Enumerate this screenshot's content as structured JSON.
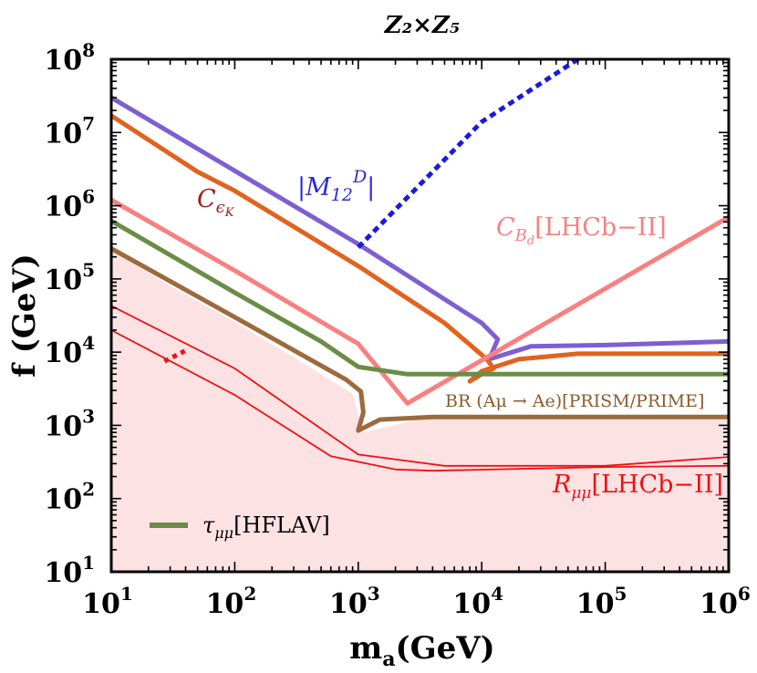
{
  "chart_data": {
    "type": "line",
    "title": "Z₂×Z₅",
    "xlabel": "m_a(GeV)",
    "ylabel": "f (GeV)",
    "xscale": "log",
    "yscale": "log",
    "xlim": [
      10,
      1000000
    ],
    "ylim": [
      10,
      100000000
    ],
    "xticks": [
      {
        "base": "10",
        "exp": "1"
      },
      {
        "base": "10",
        "exp": "2"
      },
      {
        "base": "10",
        "exp": "3"
      },
      {
        "base": "10",
        "exp": "4"
      },
      {
        "base": "10",
        "exp": "5"
      },
      {
        "base": "10",
        "exp": "6"
      }
    ],
    "yticks": [
      {
        "base": "10",
        "exp": "1"
      },
      {
        "base": "10",
        "exp": "2"
      },
      {
        "base": "10",
        "exp": "3"
      },
      {
        "base": "10",
        "exp": "4"
      },
      {
        "base": "10",
        "exp": "5"
      },
      {
        "base": "10",
        "exp": "6"
      },
      {
        "base": "10",
        "exp": "7"
      },
      {
        "base": "10",
        "exp": "8"
      }
    ],
    "legend": {
      "label": "τ_μμ[HFLAV]",
      "color": "#6b8c46",
      "position": "bottom-left"
    },
    "excluded_region": {
      "name": "excluded",
      "color": "#fde2e4",
      "x": [
        10,
        30,
        100,
        300,
        900,
        1100,
        3000,
        10000,
        100000,
        1000000
      ],
      "y": [
        250000,
        80000,
        26000,
        8500,
        2700,
        800,
        1200,
        1300,
        1300,
        1300
      ]
    },
    "series": [
      {
        "name": "M12D",
        "label": "|M₁₂ᴰ|",
        "color": "#7f5fd0",
        "dashed": false,
        "x": [
          10,
          100,
          1000,
          10000,
          13500,
          11500,
          25000,
          100000,
          1000000
        ],
        "y": [
          30000000,
          3000000,
          300000,
          25000,
          15000,
          8000,
          12000,
          12500,
          14000
        ]
      },
      {
        "name": "M12D-extension",
        "label": "",
        "color": "#1a1adf",
        "dashed": true,
        "x": [
          1000,
          10000,
          60000
        ],
        "y": [
          270000,
          14000000,
          100000000
        ]
      },
      {
        "name": "CepsK",
        "label": "CεK",
        "color": "#e1631d",
        "dashed": false,
        "x": [
          10,
          50,
          100,
          1000,
          5000,
          11000,
          12500,
          11000,
          8000,
          10000,
          20000,
          60000,
          1000000
        ],
        "y": [
          17000000,
          2900000,
          1600000,
          150000,
          25000,
          8000,
          6000,
          5500,
          4000,
          5500,
          8000,
          9500,
          9500
        ]
      },
      {
        "name": "CBd",
        "label": "C_Bd[LHCb−II]",
        "color": "#f88080",
        "dashed": false,
        "x": [
          10,
          100,
          1000,
          2500,
          1000000
        ],
        "y": [
          1200000,
          130000,
          13000,
          2000,
          700000
        ]
      },
      {
        "name": "tau_mumu",
        "label": "τ_μμ[HFLAV]",
        "color": "#6b8c46",
        "dashed": false,
        "x": [
          10,
          100,
          500,
          1000,
          2500,
          10000,
          100000,
          1000000
        ],
        "y": [
          620000,
          65000,
          14000,
          6300,
          5000,
          5000,
          5000,
          5000
        ]
      },
      {
        "name": "BR_Amu_Ae",
        "label": "BR (Aμ → Ae)[PRISM/PRIME]",
        "color": "#9c6a3c",
        "dashed": false,
        "x": [
          10,
          100,
          800,
          1050,
          1100,
          1000,
          1500,
          4000,
          100000,
          1000000
        ],
        "y": [
          260000,
          30000,
          4200,
          2900,
          1500,
          850,
          1200,
          1300,
          1300,
          1300
        ]
      },
      {
        "name": "R_mumu_upper",
        "label": "R_μμ[LHCb−II]",
        "color": "#ee1111",
        "dashed": false,
        "x": [
          10,
          100,
          500,
          1000,
          5000,
          100000,
          1000000
        ],
        "y": [
          43000,
          6000,
          900,
          400,
          280,
          280,
          370
        ]
      },
      {
        "name": "R_mumu_lower",
        "label": "",
        "color": "#ee1111",
        "dashed": false,
        "x": [
          10,
          100,
          600,
          2000,
          4000,
          100000,
          1000000
        ],
        "y": [
          20000,
          2600,
          380,
          250,
          240,
          270,
          280
        ]
      },
      {
        "name": "R_mumu_gap",
        "label": "",
        "color": "#ee1111",
        "dashed": true,
        "x": [
          27,
          40
        ],
        "y": [
          7500,
          10500
        ]
      }
    ],
    "annotations": {
      "m12d": {
        "main": "|M",
        "sub": "12",
        "sup": "D",
        "end": "|",
        "color": "#2a2ad9"
      },
      "cepsk": {
        "main": "C",
        "sub": "ϵ",
        "subsub": "K",
        "color": "#a21a1a"
      },
      "cbd": {
        "main": "C",
        "sub": "B",
        "subsub": "d",
        "rest": "[LHCb−II]",
        "color": "#f88080"
      },
      "br": {
        "text": "BR (Aμ → Ae)[PRISM/PRIME]",
        "color": "#8b5a2b"
      },
      "rmumu": {
        "main": "R",
        "sub": "μμ",
        "rest": "[LHCb−II]",
        "color": "#ee1111"
      },
      "legend": {
        "main": "τ",
        "sub": "μμ",
        "rest": "[HFLAV]"
      }
    }
  }
}
